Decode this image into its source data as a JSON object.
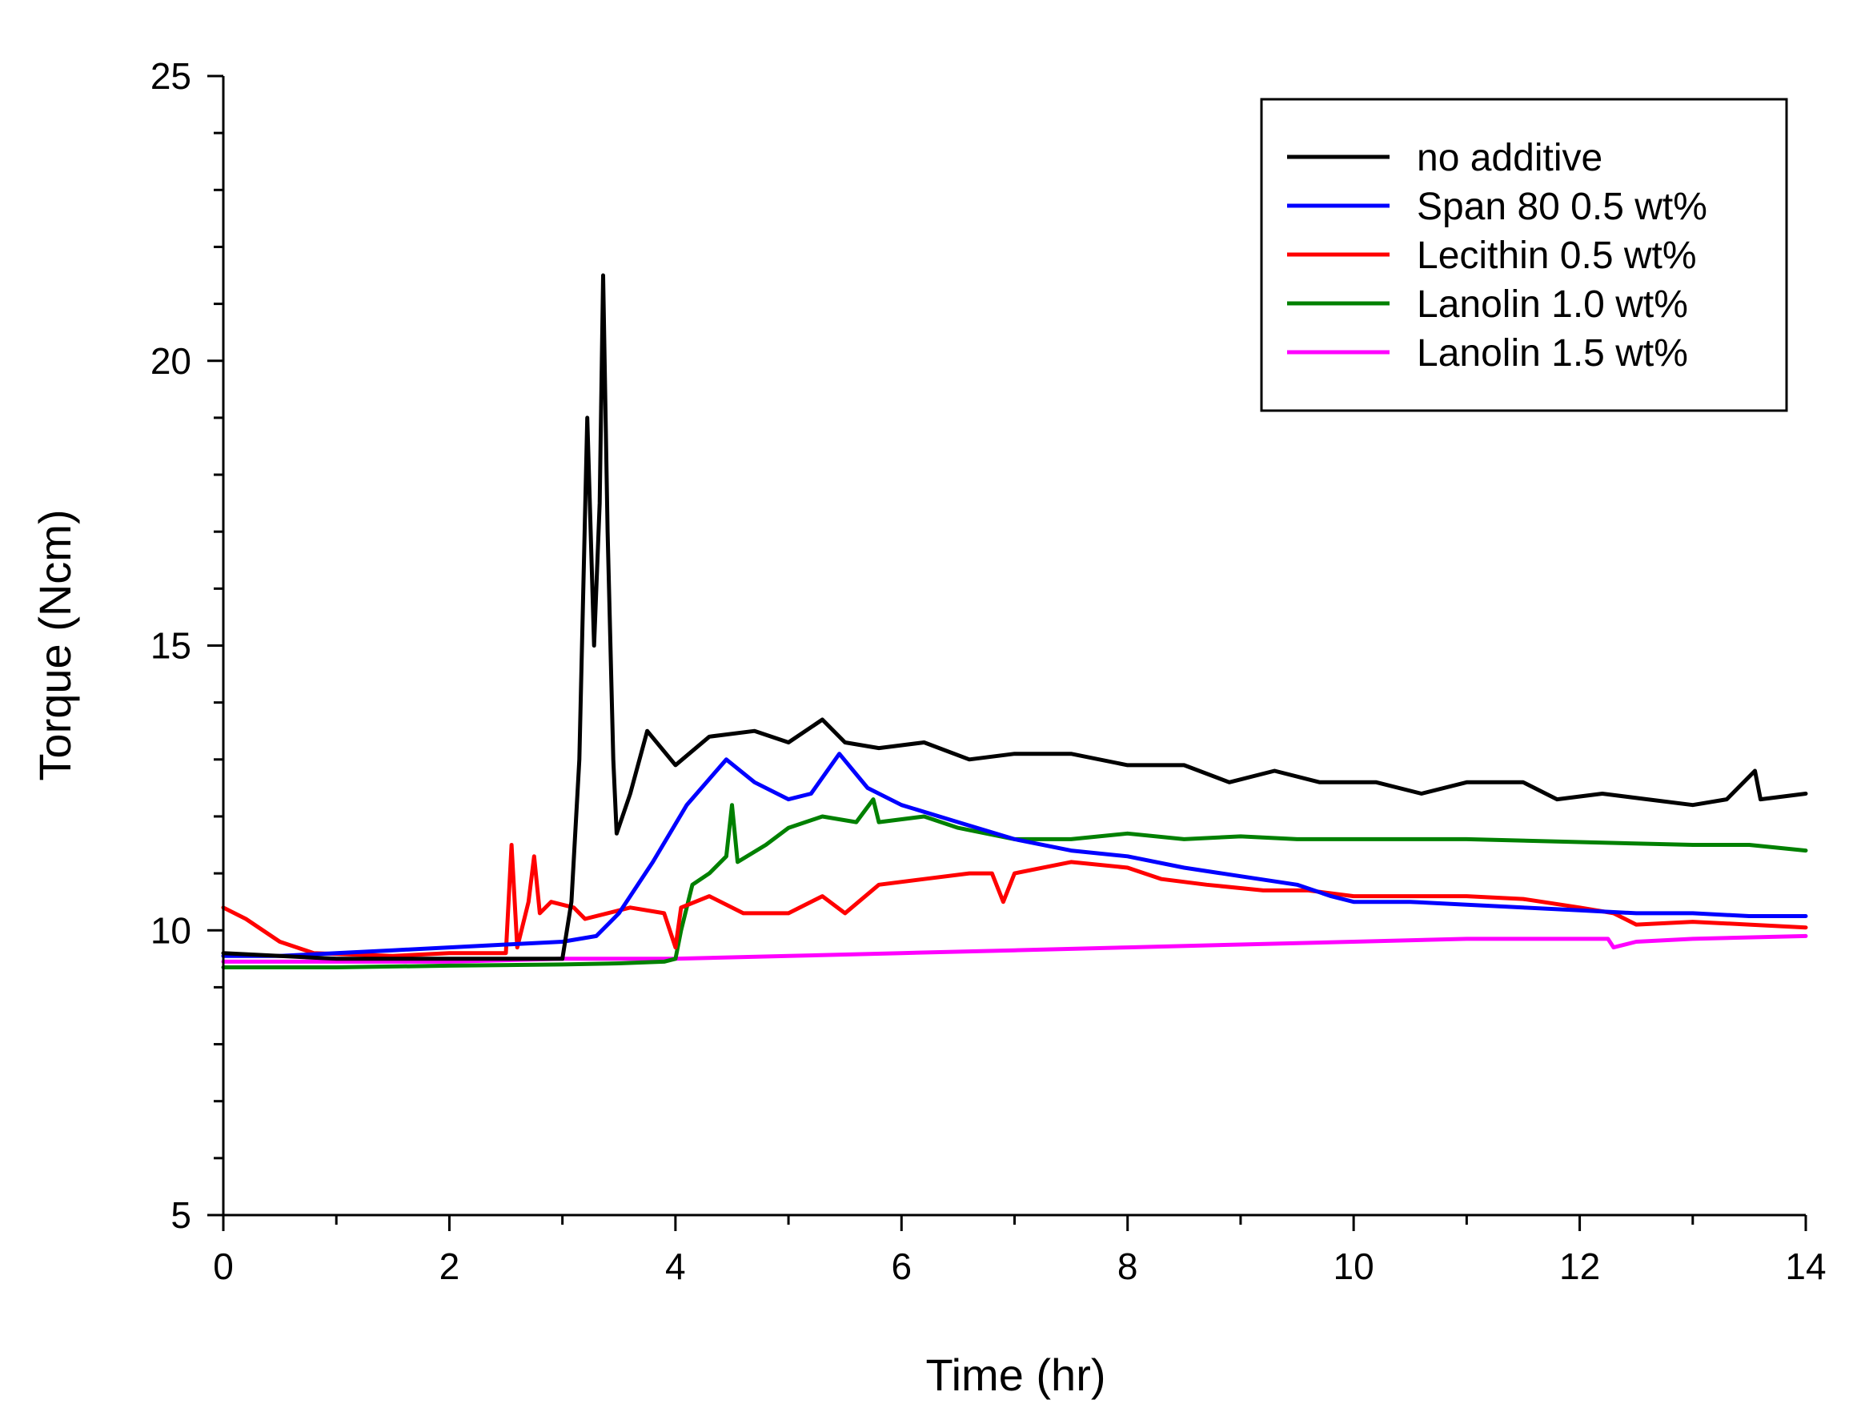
{
  "chart_data": {
    "type": "line",
    "title": "",
    "xlabel": "Time (hr)",
    "ylabel": "Torque (Ncm)",
    "xlim": [
      0,
      14
    ],
    "ylim": [
      5,
      25
    ],
    "xticks": [
      0,
      2,
      4,
      6,
      8,
      10,
      12,
      14
    ],
    "yticks": [
      5,
      10,
      15,
      20,
      25
    ],
    "x_minor_step": 1,
    "y_minor_step": 1,
    "grid": false,
    "legend_position": "top-right",
    "series": [
      {
        "name": "no additive",
        "color": "#000000",
        "points": [
          [
            0,
            9.6
          ],
          [
            1,
            9.5
          ],
          [
            2,
            9.5
          ],
          [
            3.0,
            9.5
          ],
          [
            3.08,
            10.5
          ],
          [
            3.15,
            13.0
          ],
          [
            3.22,
            19.0
          ],
          [
            3.28,
            15.0
          ],
          [
            3.33,
            17.5
          ],
          [
            3.36,
            21.5
          ],
          [
            3.4,
            17.0
          ],
          [
            3.45,
            13.0
          ],
          [
            3.48,
            11.7
          ],
          [
            3.6,
            12.4
          ],
          [
            3.75,
            13.5
          ],
          [
            4.0,
            12.9
          ],
          [
            4.3,
            13.4
          ],
          [
            4.7,
            13.5
          ],
          [
            5.0,
            13.3
          ],
          [
            5.3,
            13.7
          ],
          [
            5.5,
            13.3
          ],
          [
            5.8,
            13.2
          ],
          [
            6.2,
            13.3
          ],
          [
            6.6,
            13.0
          ],
          [
            7.0,
            13.1
          ],
          [
            7.5,
            13.1
          ],
          [
            8.0,
            12.9
          ],
          [
            8.5,
            12.9
          ],
          [
            8.9,
            12.6
          ],
          [
            9.3,
            12.8
          ],
          [
            9.7,
            12.6
          ],
          [
            10.2,
            12.6
          ],
          [
            10.6,
            12.4
          ],
          [
            11.0,
            12.6
          ],
          [
            11.5,
            12.6
          ],
          [
            11.8,
            12.3
          ],
          [
            12.2,
            12.4
          ],
          [
            12.6,
            12.3
          ],
          [
            13.0,
            12.2
          ],
          [
            13.3,
            12.3
          ],
          [
            13.55,
            12.8
          ],
          [
            13.6,
            12.3
          ],
          [
            14.0,
            12.4
          ]
        ]
      },
      {
        "name": "Span 80 0.5 wt%",
        "color": "#0000ff",
        "points": [
          [
            0,
            9.55
          ],
          [
            0.5,
            9.55
          ],
          [
            1.0,
            9.6
          ],
          [
            1.5,
            9.65
          ],
          [
            2.0,
            9.7
          ],
          [
            2.5,
            9.75
          ],
          [
            3.0,
            9.8
          ],
          [
            3.3,
            9.9
          ],
          [
            3.5,
            10.3
          ],
          [
            3.8,
            11.2
          ],
          [
            4.1,
            12.2
          ],
          [
            4.45,
            13.0
          ],
          [
            4.7,
            12.6
          ],
          [
            5.0,
            12.3
          ],
          [
            5.2,
            12.4
          ],
          [
            5.45,
            13.1
          ],
          [
            5.7,
            12.5
          ],
          [
            6.0,
            12.2
          ],
          [
            6.5,
            11.9
          ],
          [
            7.0,
            11.6
          ],
          [
            7.5,
            11.4
          ],
          [
            8.0,
            11.3
          ],
          [
            8.5,
            11.1
          ],
          [
            9.0,
            10.95
          ],
          [
            9.5,
            10.8
          ],
          [
            9.8,
            10.6
          ],
          [
            10.0,
            10.5
          ],
          [
            10.5,
            10.5
          ],
          [
            11.0,
            10.45
          ],
          [
            11.5,
            10.4
          ],
          [
            12.0,
            10.35
          ],
          [
            12.5,
            10.3
          ],
          [
            13.0,
            10.3
          ],
          [
            13.5,
            10.25
          ],
          [
            14.0,
            10.25
          ]
        ]
      },
      {
        "name": "Lecithin 0.5 wt%",
        "color": "#ff0000",
        "points": [
          [
            0,
            10.4
          ],
          [
            0.2,
            10.2
          ],
          [
            0.5,
            9.8
          ],
          [
            0.8,
            9.6
          ],
          [
            1.5,
            9.55
          ],
          [
            2.0,
            9.6
          ],
          [
            2.5,
            9.6
          ],
          [
            2.55,
            11.5
          ],
          [
            2.6,
            9.7
          ],
          [
            2.7,
            10.5
          ],
          [
            2.75,
            11.3
          ],
          [
            2.8,
            10.3
          ],
          [
            2.9,
            10.5
          ],
          [
            3.1,
            10.4
          ],
          [
            3.2,
            10.2
          ],
          [
            3.4,
            10.3
          ],
          [
            3.6,
            10.4
          ],
          [
            3.9,
            10.3
          ],
          [
            4.0,
            9.7
          ],
          [
            4.05,
            10.4
          ],
          [
            4.3,
            10.6
          ],
          [
            4.6,
            10.3
          ],
          [
            5.0,
            10.3
          ],
          [
            5.3,
            10.6
          ],
          [
            5.5,
            10.3
          ],
          [
            5.8,
            10.8
          ],
          [
            6.2,
            10.9
          ],
          [
            6.6,
            11.0
          ],
          [
            6.8,
            11.0
          ],
          [
            6.9,
            10.5
          ],
          [
            7.0,
            11.0
          ],
          [
            7.5,
            11.2
          ],
          [
            8.0,
            11.1
          ],
          [
            8.3,
            10.9
          ],
          [
            8.7,
            10.8
          ],
          [
            9.2,
            10.7
          ],
          [
            9.6,
            10.7
          ],
          [
            10.0,
            10.6
          ],
          [
            10.5,
            10.6
          ],
          [
            11.0,
            10.6
          ],
          [
            11.5,
            10.55
          ],
          [
            12.0,
            10.4
          ],
          [
            12.3,
            10.3
          ],
          [
            12.5,
            10.1
          ],
          [
            13.0,
            10.15
          ],
          [
            13.5,
            10.1
          ],
          [
            14.0,
            10.05
          ]
        ]
      },
      {
        "name": "Lanolin 1.0 wt%",
        "color": "#008000",
        "points": [
          [
            0,
            9.35
          ],
          [
            1.0,
            9.35
          ],
          [
            2.0,
            9.38
          ],
          [
            3.0,
            9.4
          ],
          [
            3.5,
            9.42
          ],
          [
            3.9,
            9.45
          ],
          [
            4.0,
            9.5
          ],
          [
            4.05,
            10.0
          ],
          [
            4.15,
            10.8
          ],
          [
            4.3,
            11.0
          ],
          [
            4.45,
            11.3
          ],
          [
            4.5,
            12.2
          ],
          [
            4.55,
            11.2
          ],
          [
            4.8,
            11.5
          ],
          [
            5.0,
            11.8
          ],
          [
            5.3,
            12.0
          ],
          [
            5.6,
            11.9
          ],
          [
            5.75,
            12.3
          ],
          [
            5.8,
            11.9
          ],
          [
            6.2,
            12.0
          ],
          [
            6.5,
            11.8
          ],
          [
            7.0,
            11.6
          ],
          [
            7.5,
            11.6
          ],
          [
            8.0,
            11.7
          ],
          [
            8.5,
            11.6
          ],
          [
            9.0,
            11.65
          ],
          [
            9.5,
            11.6
          ],
          [
            10.0,
            11.6
          ],
          [
            11.0,
            11.6
          ],
          [
            12.0,
            11.55
          ],
          [
            13.0,
            11.5
          ],
          [
            13.5,
            11.5
          ],
          [
            14.0,
            11.4
          ]
        ]
      },
      {
        "name": "Lanolin 1.5 wt%",
        "color": "#ff00ff",
        "points": [
          [
            0,
            9.45
          ],
          [
            1.0,
            9.45
          ],
          [
            2.0,
            9.45
          ],
          [
            3.0,
            9.5
          ],
          [
            4.0,
            9.5
          ],
          [
            5.0,
            9.55
          ],
          [
            6.0,
            9.6
          ],
          [
            7.0,
            9.65
          ],
          [
            8.0,
            9.7
          ],
          [
            9.0,
            9.75
          ],
          [
            10.0,
            9.8
          ],
          [
            11.0,
            9.85
          ],
          [
            12.0,
            9.85
          ],
          [
            12.25,
            9.85
          ],
          [
            12.3,
            9.7
          ],
          [
            12.5,
            9.8
          ],
          [
            13.0,
            9.85
          ],
          [
            14.0,
            9.9
          ]
        ]
      }
    ]
  }
}
